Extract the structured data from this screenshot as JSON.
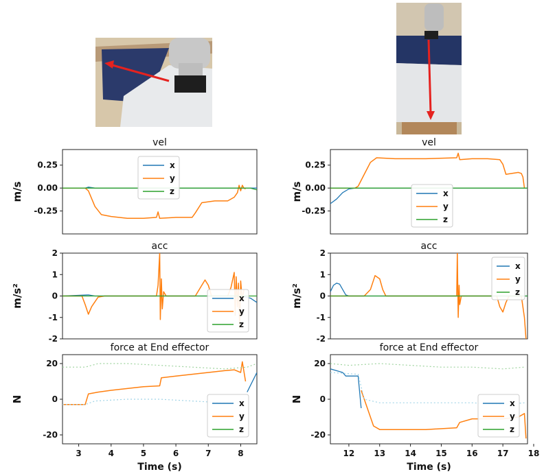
{
  "photos": [
    {
      "name": "left-robot-photo",
      "colors": {
        "floor": "#d7c7aa",
        "mat": "#2b3a6b",
        "table": "#e8eaec",
        "robot": "#c8c8c8",
        "arrow": "#e5221f"
      }
    },
    {
      "name": "right-robot-photo",
      "colors": {
        "floor": "#c9b89a",
        "mat": "#243565",
        "table": "#e4e6e8",
        "robot": "#bdbdbd",
        "arrow": "#e5221f"
      }
    }
  ],
  "series_colors": {
    "x": "#1f77b4",
    "y": "#ff7f0e",
    "z": "#2ca02c"
  },
  "chart_data": [
    {
      "id": "left-vel",
      "type": "line",
      "title": "vel",
      "ylabel": "m/s",
      "xlim": [
        2.5,
        8.5
      ],
      "ylim": [
        -0.5,
        0.42
      ],
      "yticks": [
        {
          "v": 0.25,
          "l": "0.25"
        },
        {
          "v": 0,
          "l": "0.00"
        },
        {
          "v": -0.25,
          "l": "-0.25"
        }
      ],
      "legend": "top-center",
      "legend_labels": [
        "x",
        "y",
        "z"
      ],
      "series": [
        {
          "name": "x",
          "points": [
            [
              2.5,
              0
            ],
            [
              3.2,
              0
            ],
            [
              3.3,
              0.01
            ],
            [
              3.5,
              0
            ],
            [
              8.5,
              0
            ]
          ]
        },
        {
          "name": "y",
          "points": [
            [
              2.5,
              0
            ],
            [
              3.2,
              0
            ],
            [
              3.3,
              -0.03
            ],
            [
              3.5,
              -0.2
            ],
            [
              3.7,
              -0.29
            ],
            [
              4.0,
              -0.31
            ],
            [
              4.5,
              -0.33
            ],
            [
              5.0,
              -0.33
            ],
            [
              5.4,
              -0.32
            ],
            [
              5.45,
              -0.26
            ],
            [
              5.5,
              -0.33
            ],
            [
              6.0,
              -0.32
            ],
            [
              6.5,
              -0.32
            ],
            [
              6.6,
              -0.27
            ],
            [
              6.8,
              -0.16
            ],
            [
              7.2,
              -0.14
            ],
            [
              7.6,
              -0.14
            ],
            [
              7.8,
              -0.1
            ],
            [
              7.9,
              -0.05
            ],
            [
              7.95,
              0.03
            ],
            [
              8.0,
              -0.03
            ],
            [
              8.05,
              0.03
            ],
            [
              8.1,
              0
            ],
            [
              8.15,
              -0.01
            ]
          ]
        },
        {
          "name": "z",
          "points": [
            [
              2.5,
              0
            ],
            [
              8.3,
              0
            ],
            [
              8.5,
              -0.02
            ]
          ]
        }
      ]
    },
    {
      "id": "left-acc",
      "type": "line",
      "title": "acc",
      "ylabel": "m/s²",
      "xlim": [
        2.5,
        8.5
      ],
      "ylim": [
        -2,
        2
      ],
      "yticks": [
        {
          "v": 2,
          "l": "2"
        },
        {
          "v": 1,
          "l": "1"
        },
        {
          "v": 0,
          "l": "0"
        },
        {
          "v": -1,
          "l": "-1"
        },
        {
          "v": -2,
          "l": "-2"
        }
      ],
      "legend": "lower-right",
      "legend_labels": [
        "x",
        "y",
        "z"
      ],
      "series": [
        {
          "name": "x",
          "points": [
            [
              2.5,
              0
            ],
            [
              3.3,
              0.05
            ],
            [
              3.5,
              0
            ],
            [
              8.0,
              0
            ],
            [
              8.3,
              -0.1
            ],
            [
              8.5,
              -0.3
            ]
          ]
        },
        {
          "name": "y",
          "points": [
            [
              2.5,
              0
            ],
            [
              3.1,
              0
            ],
            [
              3.2,
              -0.4
            ],
            [
              3.3,
              -0.85
            ],
            [
              3.4,
              -0.5
            ],
            [
              3.6,
              -0.05
            ],
            [
              3.8,
              0
            ],
            [
              5.4,
              0
            ],
            [
              5.45,
              0.5
            ],
            [
              5.5,
              2.0
            ],
            [
              5.52,
              -1.1
            ],
            [
              5.55,
              0.8
            ],
            [
              5.58,
              -0.6
            ],
            [
              5.62,
              0.2
            ],
            [
              5.7,
              0
            ],
            [
              6.6,
              0
            ],
            [
              6.8,
              0.5
            ],
            [
              6.9,
              0.75
            ],
            [
              7.0,
              0.5
            ],
            [
              7.1,
              0
            ],
            [
              7.6,
              0
            ],
            [
              7.7,
              0.4
            ],
            [
              7.8,
              1.1
            ],
            [
              7.83,
              -0.9
            ],
            [
              7.86,
              0.9
            ],
            [
              7.9,
              -0.5
            ],
            [
              7.93,
              0.6
            ],
            [
              7.97,
              -1.5
            ],
            [
              8.0,
              0.7
            ],
            [
              8.05,
              -0.2
            ],
            [
              8.1,
              0.3
            ]
          ]
        },
        {
          "name": "z",
          "points": [
            [
              2.5,
              0
            ],
            [
              8.5,
              0
            ]
          ]
        }
      ]
    },
    {
      "id": "left-force",
      "type": "line",
      "title": "force at End effector",
      "ylabel": "N",
      "xlim": [
        2.5,
        8.5
      ],
      "ylim": [
        -25,
        25
      ],
      "xticks": [
        3,
        4,
        5,
        6,
        7,
        8
      ],
      "xlabel": "Time (s)",
      "yticks": [
        {
          "v": 20,
          "l": "20"
        },
        {
          "v": 0,
          "l": "0"
        },
        {
          "v": -20,
          "l": "-20"
        }
      ],
      "legend": "lower-right",
      "legend_labels": [
        "x",
        "y",
        "z"
      ],
      "series": [
        {
          "name": "x",
          "points": [
            [
              8.2,
              4
            ],
            [
              8.5,
              15
            ]
          ]
        },
        {
          "name": "y",
          "points": [
            [
              2.5,
              -3
            ],
            [
              3.2,
              -3
            ],
            [
              3.3,
              3
            ],
            [
              3.6,
              4
            ],
            [
              4.0,
              5
            ],
            [
              4.5,
              6
            ],
            [
              5.0,
              7
            ],
            [
              5.5,
              7.5
            ],
            [
              5.55,
              12
            ],
            [
              6.0,
              13
            ],
            [
              6.5,
              14
            ],
            [
              7.0,
              15
            ],
            [
              7.5,
              16
            ],
            [
              7.8,
              16.5
            ],
            [
              8.0,
              15
            ],
            [
              8.05,
              21
            ],
            [
              8.15,
              10
            ]
          ]
        },
        {
          "name": "y-dotted",
          "points": [
            [
              2.5,
              -3
            ],
            [
              3.2,
              -3
            ],
            [
              3.5,
              -1
            ],
            [
              4.5,
              0
            ],
            [
              5.5,
              0
            ],
            [
              6.5,
              -1
            ],
            [
              7.5,
              -2
            ],
            [
              8.2,
              -2
            ]
          ]
        },
        {
          "name": "z-dotted",
          "points": [
            [
              2.5,
              18
            ],
            [
              3.2,
              18
            ],
            [
              3.6,
              20
            ],
            [
              4.5,
              20
            ],
            [
              5.5,
              19
            ],
            [
              6.5,
              18
            ],
            [
              7.5,
              17
            ],
            [
              8.2,
              18
            ],
            [
              8.5,
              20
            ]
          ]
        }
      ]
    },
    {
      "id": "right-vel",
      "type": "line",
      "title": "vel",
      "ylabel": "m/s",
      "xlim": [
        11.4,
        17.8
      ],
      "ylim": [
        -0.5,
        0.42
      ],
      "yticks": [
        {
          "v": 0.25,
          "l": "0.25"
        },
        {
          "v": 0,
          "l": "0.00"
        },
        {
          "v": -0.25,
          "l": "-0.25"
        }
      ],
      "legend": "lower-center",
      "legend_labels": [
        "x",
        "y",
        "z"
      ],
      "series": [
        {
          "name": "x",
          "points": [
            [
              11.4,
              -0.17
            ],
            [
              11.6,
              -0.12
            ],
            [
              11.8,
              -0.05
            ],
            [
              12.0,
              -0.01
            ],
            [
              12.2,
              0
            ],
            [
              17.8,
              0
            ]
          ]
        },
        {
          "name": "y",
          "points": [
            [
              11.4,
              0
            ],
            [
              12.2,
              0
            ],
            [
              12.3,
              0.02
            ],
            [
              12.5,
              0.15
            ],
            [
              12.7,
              0.28
            ],
            [
              12.9,
              0.33
            ],
            [
              13.5,
              0.32
            ],
            [
              14.5,
              0.32
            ],
            [
              15.5,
              0.33
            ],
            [
              15.55,
              0.38
            ],
            [
              15.6,
              0.31
            ],
            [
              16.0,
              0.32
            ],
            [
              16.5,
              0.32
            ],
            [
              16.9,
              0.31
            ],
            [
              17.0,
              0.26
            ],
            [
              17.1,
              0.15
            ],
            [
              17.3,
              0.16
            ],
            [
              17.5,
              0.17
            ],
            [
              17.6,
              0.16
            ],
            [
              17.65,
              0.12
            ],
            [
              17.7,
              0
            ]
          ]
        },
        {
          "name": "z",
          "points": [
            [
              11.4,
              0
            ],
            [
              17.8,
              0
            ]
          ]
        }
      ]
    },
    {
      "id": "right-acc",
      "type": "line",
      "title": "acc",
      "ylabel": "m/s²",
      "xlim": [
        11.4,
        17.8
      ],
      "ylim": [
        -2,
        2
      ],
      "yticks": [
        {
          "v": 2,
          "l": "2"
        },
        {
          "v": 1,
          "l": "1"
        },
        {
          "v": 0,
          "l": "0"
        },
        {
          "v": -1,
          "l": "-1"
        },
        {
          "v": -2,
          "l": "-2"
        }
      ],
      "legend": "upper-right",
      "legend_labels": [
        "x",
        "y",
        "z"
      ],
      "series": [
        {
          "name": "x",
          "points": [
            [
              11.4,
              0.2
            ],
            [
              11.5,
              0.5
            ],
            [
              11.6,
              0.6
            ],
            [
              11.7,
              0.55
            ],
            [
              11.8,
              0.3
            ],
            [
              11.9,
              0.05
            ],
            [
              12.0,
              0
            ],
            [
              17.8,
              0
            ]
          ]
        },
        {
          "name": "y",
          "points": [
            [
              11.4,
              0
            ],
            [
              12.5,
              0
            ],
            [
              12.7,
              0.3
            ],
            [
              12.85,
              0.95
            ],
            [
              13.0,
              0.8
            ],
            [
              13.1,
              0.3
            ],
            [
              13.2,
              0
            ],
            [
              15.5,
              0
            ],
            [
              15.52,
              2.0
            ],
            [
              15.55,
              -1.0
            ],
            [
              15.58,
              0.5
            ],
            [
              15.6,
              -0.4
            ],
            [
              15.65,
              0
            ],
            [
              16.8,
              0
            ],
            [
              16.9,
              -0.5
            ],
            [
              17.0,
              -0.75
            ],
            [
              17.1,
              -0.3
            ],
            [
              17.2,
              0
            ],
            [
              17.6,
              0
            ],
            [
              17.7,
              -1.0
            ],
            [
              17.75,
              -2.0
            ]
          ]
        },
        {
          "name": "z",
          "points": [
            [
              11.4,
              0
            ],
            [
              17.8,
              0
            ]
          ]
        }
      ]
    },
    {
      "id": "right-force",
      "type": "line",
      "title": "force at End effector",
      "ylabel": "N",
      "xlim": [
        11.4,
        17.8
      ],
      "ylim": [
        -25,
        25
      ],
      "xticks": [
        12,
        13,
        14,
        15,
        16,
        17,
        18
      ],
      "xlabel": "Time (s)",
      "yticks": [
        {
          "v": 20,
          "l": "20"
        },
        {
          "v": 0,
          "l": "0"
        },
        {
          "v": -20,
          "l": "-20"
        }
      ],
      "legend": "lower-right",
      "legend_labels": [
        "x",
        "y",
        "z"
      ],
      "series": [
        {
          "name": "x",
          "points": [
            [
              11.4,
              17
            ],
            [
              11.6,
              16
            ],
            [
              11.8,
              15
            ],
            [
              11.9,
              13
            ],
            [
              12.3,
              13
            ],
            [
              12.4,
              -5
            ]
          ]
        },
        {
          "name": "y",
          "points": [
            [
              12.4,
              5
            ],
            [
              12.6,
              -5
            ],
            [
              12.8,
              -15
            ],
            [
              13.0,
              -17
            ],
            [
              13.5,
              -17
            ],
            [
              14.5,
              -17
            ],
            [
              15.5,
              -16
            ],
            [
              15.6,
              -13
            ],
            [
              16.0,
              -11
            ],
            [
              16.5,
              -11
            ],
            [
              17.0,
              -11
            ],
            [
              17.5,
              -10
            ],
            [
              17.7,
              -8
            ],
            [
              17.75,
              -22
            ]
          ]
        },
        {
          "name": "y-dotted",
          "points": [
            [
              11.4,
              15
            ],
            [
              12.3,
              14
            ],
            [
              12.5,
              0
            ],
            [
              13.0,
              -2
            ],
            [
              14.0,
              -2
            ],
            [
              15.0,
              -2
            ],
            [
              16.0,
              -2
            ],
            [
              17.0,
              -3
            ],
            [
              17.7,
              -2
            ]
          ]
        },
        {
          "name": "z-dotted",
          "points": [
            [
              11.4,
              20
            ],
            [
              12.0,
              19
            ],
            [
              13.0,
              20
            ],
            [
              14.0,
              19
            ],
            [
              15.0,
              18
            ],
            [
              16.0,
              18
            ],
            [
              17.0,
              17
            ],
            [
              17.7,
              18
            ]
          ]
        }
      ]
    }
  ]
}
